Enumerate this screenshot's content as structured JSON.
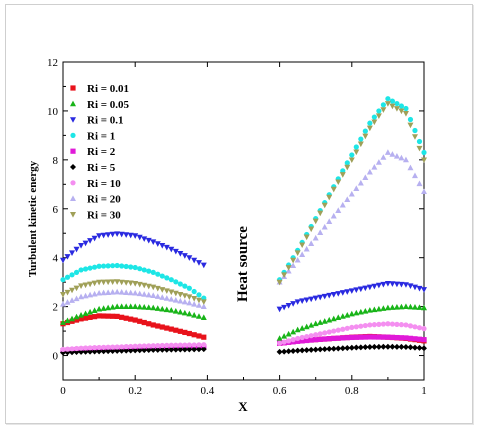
{
  "chart_data": {
    "type": "scatter",
    "title": "",
    "xlabel": "X",
    "ylabel": "Turbulent kinetic energy",
    "xlim": [
      0,
      1
    ],
    "ylim": [
      -1,
      12
    ],
    "x_ticks": [
      0,
      0.2,
      0.4,
      0.6,
      0.8,
      1
    ],
    "x_tick_labels": [
      "0",
      "0.2",
      "0.4",
      "0.6",
      "0.8",
      "1"
    ],
    "y_ticks": [
      0,
      2,
      4,
      6,
      8,
      10,
      12
    ],
    "y_tick_labels": [
      "0",
      "2",
      "4",
      "6",
      "8",
      "10",
      "12"
    ],
    "grid": false,
    "legend_position": "top-left",
    "annotation": "Heat source",
    "series": [
      {
        "name": "Ri = 0.01",
        "marker": "square",
        "color": "#e8121b",
        "left": [
          [
            0,
            1.3
          ],
          [
            0.05,
            1.5
          ],
          [
            0.1,
            1.62
          ],
          [
            0.15,
            1.6
          ],
          [
            0.2,
            1.45
          ],
          [
            0.25,
            1.25
          ],
          [
            0.3,
            1.08
          ],
          [
            0.35,
            0.9
          ],
          [
            0.39,
            0.75
          ]
        ],
        "right": [
          [
            0.6,
            0.5
          ],
          [
            0.65,
            0.6
          ],
          [
            0.7,
            0.65
          ],
          [
            0.75,
            0.7
          ],
          [
            0.8,
            0.75
          ],
          [
            0.85,
            0.78
          ],
          [
            0.9,
            0.75
          ],
          [
            0.95,
            0.7
          ],
          [
            1,
            0.6
          ]
        ]
      },
      {
        "name": "Ri = 0.05",
        "marker": "triangle-up",
        "color": "#18b418",
        "left": [
          [
            0,
            1.35
          ],
          [
            0.05,
            1.65
          ],
          [
            0.1,
            1.9
          ],
          [
            0.15,
            2.0
          ],
          [
            0.2,
            2.0
          ],
          [
            0.25,
            1.95
          ],
          [
            0.3,
            1.85
          ],
          [
            0.35,
            1.7
          ],
          [
            0.39,
            1.55
          ]
        ],
        "right": [
          [
            0.6,
            0.7
          ],
          [
            0.65,
            1.05
          ],
          [
            0.7,
            1.3
          ],
          [
            0.75,
            1.5
          ],
          [
            0.8,
            1.7
          ],
          [
            0.85,
            1.85
          ],
          [
            0.9,
            1.95
          ],
          [
            0.95,
            2.0
          ],
          [
            1,
            1.95
          ]
        ]
      },
      {
        "name": "Ri = 0.1",
        "marker": "triangle-down",
        "color": "#2a2ae0",
        "left": [
          [
            0,
            3.9
          ],
          [
            0.05,
            4.5
          ],
          [
            0.1,
            4.9
          ],
          [
            0.15,
            4.98
          ],
          [
            0.2,
            4.9
          ],
          [
            0.25,
            4.65
          ],
          [
            0.3,
            4.35
          ],
          [
            0.35,
            4.0
          ],
          [
            0.39,
            3.7
          ]
        ],
        "right": [
          [
            0.6,
            1.9
          ],
          [
            0.65,
            2.2
          ],
          [
            0.7,
            2.35
          ],
          [
            0.75,
            2.5
          ],
          [
            0.8,
            2.65
          ],
          [
            0.85,
            2.8
          ],
          [
            0.9,
            2.95
          ],
          [
            0.95,
            2.9
          ],
          [
            1,
            2.7
          ]
        ]
      },
      {
        "name": "Ri = 1",
        "marker": "circle",
        "color": "#1de6e6",
        "left": [
          [
            0,
            3.1
          ],
          [
            0.05,
            3.5
          ],
          [
            0.1,
            3.65
          ],
          [
            0.15,
            3.68
          ],
          [
            0.2,
            3.6
          ],
          [
            0.25,
            3.4
          ],
          [
            0.3,
            3.1
          ],
          [
            0.35,
            2.75
          ],
          [
            0.39,
            2.35
          ]
        ],
        "right": [
          [
            0.6,
            3.1
          ],
          [
            0.65,
            4.3
          ],
          [
            0.7,
            5.6
          ],
          [
            0.75,
            6.9
          ],
          [
            0.8,
            8.2
          ],
          [
            0.85,
            9.5
          ],
          [
            0.9,
            10.5
          ],
          [
            0.95,
            10.1
          ],
          [
            1,
            8.3
          ]
        ]
      },
      {
        "name": "Ri = 2",
        "marker": "square",
        "color": "#e01ad8",
        "left": [
          [
            0,
            0.2
          ],
          [
            0.05,
            0.25
          ],
          [
            0.1,
            0.28
          ],
          [
            0.15,
            0.3
          ],
          [
            0.2,
            0.32
          ],
          [
            0.25,
            0.33
          ],
          [
            0.3,
            0.35
          ],
          [
            0.35,
            0.36
          ],
          [
            0.39,
            0.36
          ]
        ],
        "right": [
          [
            0.6,
            0.5
          ],
          [
            0.65,
            0.58
          ],
          [
            0.7,
            0.65
          ],
          [
            0.75,
            0.7
          ],
          [
            0.8,
            0.74
          ],
          [
            0.85,
            0.76
          ],
          [
            0.9,
            0.75
          ],
          [
            0.95,
            0.72
          ],
          [
            1,
            0.65
          ]
        ]
      },
      {
        "name": "Ri = 5",
        "marker": "diamond",
        "color": "#000000",
        "left": [
          [
            0,
            0.12
          ],
          [
            0.05,
            0.15
          ],
          [
            0.1,
            0.17
          ],
          [
            0.15,
            0.19
          ],
          [
            0.2,
            0.21
          ],
          [
            0.25,
            0.23
          ],
          [
            0.3,
            0.24
          ],
          [
            0.35,
            0.25
          ],
          [
            0.39,
            0.26
          ]
        ],
        "right": [
          [
            0.6,
            0.15
          ],
          [
            0.65,
            0.2
          ],
          [
            0.7,
            0.24
          ],
          [
            0.75,
            0.28
          ],
          [
            0.8,
            0.32
          ],
          [
            0.85,
            0.35
          ],
          [
            0.9,
            0.36
          ],
          [
            0.95,
            0.35
          ],
          [
            1,
            0.3
          ]
        ]
      },
      {
        "name": "Ri = 10",
        "marker": "circle",
        "color": "#f48ff0",
        "left": [
          [
            0,
            0.25
          ],
          [
            0.05,
            0.3
          ],
          [
            0.1,
            0.33
          ],
          [
            0.15,
            0.35
          ],
          [
            0.2,
            0.38
          ],
          [
            0.25,
            0.4
          ],
          [
            0.3,
            0.42
          ],
          [
            0.35,
            0.43
          ],
          [
            0.39,
            0.44
          ]
        ],
        "right": [
          [
            0.6,
            0.5
          ],
          [
            0.65,
            0.7
          ],
          [
            0.7,
            0.85
          ],
          [
            0.75,
            1.0
          ],
          [
            0.8,
            1.15
          ],
          [
            0.85,
            1.25
          ],
          [
            0.9,
            1.3
          ],
          [
            0.95,
            1.25
          ],
          [
            1,
            1.1
          ]
        ]
      },
      {
        "name": "Ri = 20",
        "marker": "triangle-up",
        "color": "#b7b0f0",
        "left": [
          [
            0,
            2.1
          ],
          [
            0.05,
            2.4
          ],
          [
            0.1,
            2.55
          ],
          [
            0.15,
            2.6
          ],
          [
            0.2,
            2.55
          ],
          [
            0.25,
            2.45
          ],
          [
            0.3,
            2.3
          ],
          [
            0.35,
            2.15
          ],
          [
            0.39,
            2.0
          ]
        ],
        "right": [
          [
            0.6,
            3.0
          ],
          [
            0.65,
            3.9
          ],
          [
            0.7,
            4.8
          ],
          [
            0.75,
            5.7
          ],
          [
            0.8,
            6.6
          ],
          [
            0.85,
            7.5
          ],
          [
            0.9,
            8.3
          ],
          [
            0.95,
            8.0
          ],
          [
            1,
            6.7
          ]
        ]
      },
      {
        "name": "Ri = 30",
        "marker": "triangle-down",
        "color": "#a0a058",
        "left": [
          [
            0,
            2.5
          ],
          [
            0.05,
            2.85
          ],
          [
            0.1,
            3.0
          ],
          [
            0.15,
            3.02
          ],
          [
            0.2,
            2.95
          ],
          [
            0.25,
            2.8
          ],
          [
            0.3,
            2.6
          ],
          [
            0.35,
            2.4
          ],
          [
            0.39,
            2.2
          ]
        ],
        "right": [
          [
            0.6,
            3.0
          ],
          [
            0.65,
            4.2
          ],
          [
            0.7,
            5.5
          ],
          [
            0.75,
            6.8
          ],
          [
            0.8,
            8.0
          ],
          [
            0.85,
            9.3
          ],
          [
            0.9,
            10.3
          ],
          [
            0.95,
            9.9
          ],
          [
            1,
            8.0
          ]
        ]
      }
    ]
  }
}
